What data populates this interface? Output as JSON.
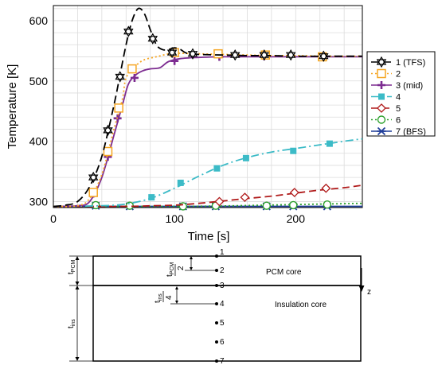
{
  "chart_data": {
    "type": "line",
    "xlabel": "Time [s]",
    "ylabel": "Temperature [K]",
    "xlim": [
      0,
      255
    ],
    "ylim": [
      290,
      625
    ],
    "xticks": [
      0,
      100,
      200
    ],
    "yticks": [
      300,
      400,
      500,
      600
    ],
    "grid": true,
    "legend_position": "right",
    "series": [
      {
        "name": "1 (TFS)",
        "color": "#000000",
        "dash": "10,5",
        "marker": "star6",
        "line": [
          [
            0,
            292
          ],
          [
            10,
            294
          ],
          [
            20,
            300
          ],
          [
            30,
            325
          ],
          [
            40,
            375
          ],
          [
            50,
            460
          ],
          [
            55,
            510
          ],
          [
            60,
            560
          ],
          [
            65,
            600
          ],
          [
            70,
            620
          ],
          [
            75,
            612
          ],
          [
            80,
            585
          ],
          [
            85,
            560
          ],
          [
            90,
            552
          ],
          [
            95,
            552
          ],
          [
            100,
            555
          ],
          [
            105,
            552
          ],
          [
            110,
            546
          ],
          [
            120,
            544
          ],
          [
            140,
            543
          ],
          [
            160,
            542
          ],
          [
            180,
            542
          ],
          [
            200,
            541
          ],
          [
            230,
            541
          ],
          [
            255,
            541
          ]
        ],
        "points": [
          [
            33,
            340
          ],
          [
            45,
            418
          ],
          [
            55,
            507
          ],
          [
            62,
            582
          ],
          [
            82,
            570
          ],
          [
            98,
            547
          ],
          [
            115,
            545
          ],
          [
            150,
            543
          ],
          [
            174,
            543
          ],
          [
            196,
            543
          ],
          [
            223,
            541
          ]
        ]
      },
      {
        "name": "2",
        "color": "#f5a623",
        "dash": "2,3",
        "marker": "square",
        "line": [
          [
            0,
            292
          ],
          [
            20,
            293
          ],
          [
            30,
            305
          ],
          [
            40,
            345
          ],
          [
            50,
            420
          ],
          [
            57,
            470
          ],
          [
            60,
            505
          ],
          [
            68,
            525
          ],
          [
            75,
            535
          ],
          [
            85,
            540
          ],
          [
            95,
            545
          ],
          [
            100,
            546
          ],
          [
            120,
            545
          ],
          [
            140,
            544
          ],
          [
            160,
            543
          ],
          [
            180,
            542
          ],
          [
            200,
            542
          ],
          [
            230,
            541
          ],
          [
            255,
            541
          ]
        ],
        "points": [
          [
            33,
            315
          ],
          [
            45,
            383
          ],
          [
            54,
            455
          ],
          [
            65,
            520
          ],
          [
            100,
            547
          ],
          [
            136,
            545
          ],
          [
            175,
            543
          ],
          [
            222,
            540
          ]
        ]
      },
      {
        "name": "3 (mid)",
        "color": "#7d2c91",
        "dash": "",
        "marker": "plus",
        "line": [
          [
            0,
            292
          ],
          [
            20,
            293
          ],
          [
            30,
            300
          ],
          [
            40,
            340
          ],
          [
            50,
            410
          ],
          [
            57,
            460
          ],
          [
            62,
            495
          ],
          [
            68,
            510
          ],
          [
            74,
            517
          ],
          [
            80,
            520
          ],
          [
            88,
            522
          ],
          [
            95,
            532
          ],
          [
            105,
            537
          ],
          [
            120,
            539
          ],
          [
            140,
            540
          ],
          [
            170,
            540
          ],
          [
            200,
            540
          ],
          [
            255,
            540
          ]
        ],
        "points": [
          [
            33,
            313
          ],
          [
            45,
            374
          ],
          [
            53,
            438
          ],
          [
            67,
            505
          ],
          [
            100,
            533
          ],
          [
            137,
            540
          ],
          [
            174,
            541
          ],
          [
            223,
            540
          ]
        ]
      },
      {
        "name": "4",
        "color": "#3cbbc7",
        "dash": "10,4,2,4",
        "marker": "fsquare",
        "line": [
          [
            0,
            292
          ],
          [
            40,
            293
          ],
          [
            60,
            296
          ],
          [
            80,
            305
          ],
          [
            100,
            322
          ],
          [
            120,
            342
          ],
          [
            140,
            360
          ],
          [
            160,
            373
          ],
          [
            180,
            382
          ],
          [
            200,
            388
          ],
          [
            220,
            394
          ],
          [
            240,
            400
          ],
          [
            255,
            404
          ]
        ],
        "points": [
          [
            81,
            307
          ],
          [
            105,
            331
          ],
          [
            135,
            355
          ],
          [
            159,
            372
          ],
          [
            198,
            384
          ],
          [
            228,
            396
          ]
        ]
      },
      {
        "name": "5",
        "color": "#b01a1a",
        "dash": "9,5",
        "marker": "diamond",
        "line": [
          [
            0,
            292
          ],
          [
            60,
            292
          ],
          [
            80,
            293
          ],
          [
            100,
            294
          ],
          [
            120,
            297
          ],
          [
            140,
            301
          ],
          [
            160,
            305
          ],
          [
            180,
            309
          ],
          [
            200,
            314
          ],
          [
            220,
            319
          ],
          [
            240,
            323
          ],
          [
            255,
            327
          ]
        ],
        "points": [
          [
            137,
            300
          ],
          [
            158,
            307
          ],
          [
            199,
            315
          ],
          [
            225,
            322
          ]
        ]
      },
      {
        "name": "6",
        "color": "#2ca02c",
        "dash": "2,3",
        "marker": "circle",
        "line": [
          [
            0,
            292
          ],
          [
            100,
            292
          ],
          [
            150,
            293
          ],
          [
            200,
            295
          ],
          [
            255,
            297
          ]
        ],
        "points": [
          [
            35,
            294
          ],
          [
            63,
            293
          ],
          [
            107,
            292
          ],
          [
            134,
            293
          ],
          [
            176,
            293
          ],
          [
            198,
            294
          ],
          [
            226,
            295
          ]
        ]
      },
      {
        "name": "7 (BFS)",
        "color": "#1f3d99",
        "dash": "",
        "marker": "asterisk",
        "line": [
          [
            0,
            292
          ],
          [
            100,
            292
          ],
          [
            200,
            292
          ],
          [
            255,
            292
          ]
        ],
        "points": [
          [
            35,
            293
          ],
          [
            63,
            292
          ],
          [
            107,
            292
          ],
          [
            134,
            292
          ],
          [
            176,
            292
          ],
          [
            198,
            292
          ],
          [
            226,
            292
          ]
        ]
      }
    ]
  },
  "diagram": {
    "node_labels": [
      "1",
      "2",
      "3",
      "4",
      "5",
      "6",
      "7"
    ],
    "pcm_label": "PCM core",
    "insulation_label": "Insulation core",
    "t_pcm": {
      "main": "t",
      "sub": "PCM"
    },
    "t_ins": {
      "main": "t",
      "sub": "ins"
    },
    "half_pcm": "2",
    "quarter_ins": "4",
    "axis_label": "z"
  }
}
